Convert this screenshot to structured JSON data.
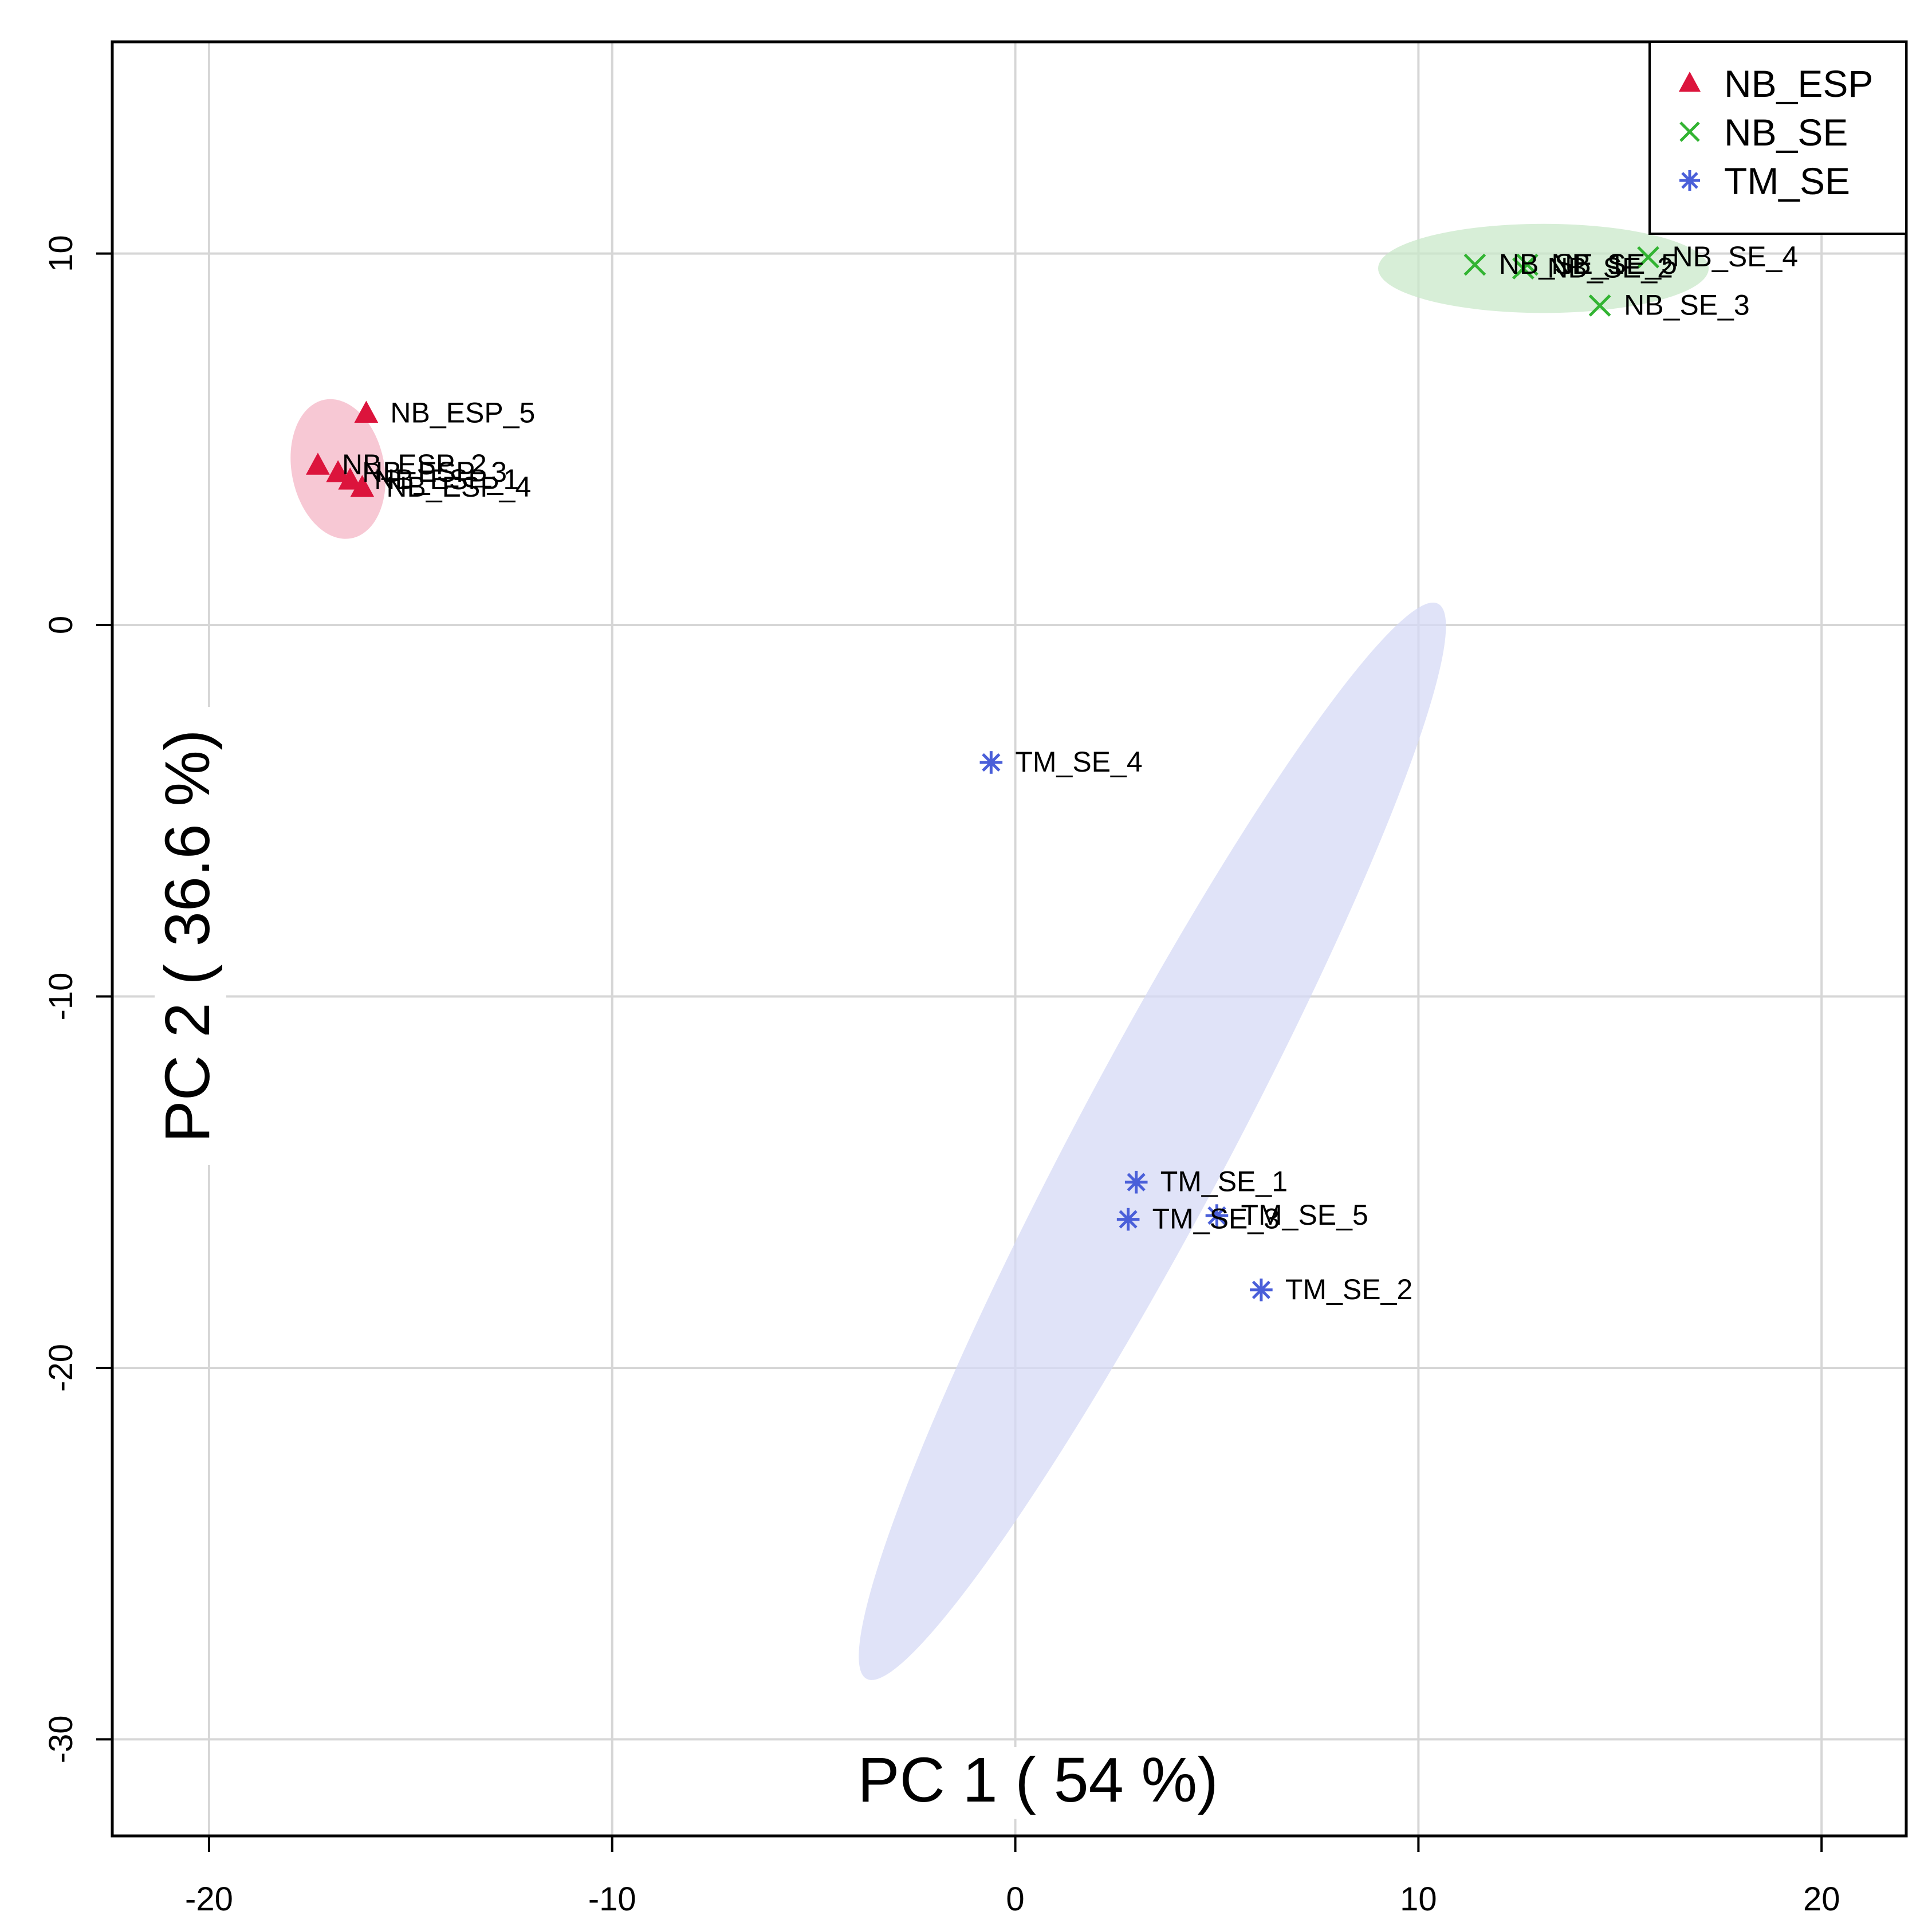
{
  "chart_data": {
    "type": "scatter",
    "xlabel": "PC 1 ( 54 %)",
    "ylabel": "PC 2 ( 36.6 %)",
    "xlim": [
      -22.4,
      22.1
    ],
    "ylim": [
      -32.6,
      15.7
    ],
    "xticks": [
      -20,
      -10,
      0,
      10,
      20
    ],
    "yticks": [
      -30,
      -20,
      -10,
      0,
      10
    ],
    "xtick_labels": [
      "-20",
      "-10",
      "0",
      "10",
      "20"
    ],
    "ytick_labels": [
      "-30",
      "-20",
      "-10",
      "0",
      "10"
    ],
    "grid": true,
    "legend_position": "top-right",
    "series": [
      {
        "name": "NB_ESP",
        "marker": "triangle",
        "color": "#dc143c",
        "ellipse_color": "#f4b6c6",
        "points": [
          {
            "label": "NB_ESP_1",
            "x": -16.5,
            "y": 3.9
          },
          {
            "label": "NB_ESP_2",
            "x": -17.3,
            "y": 4.3
          },
          {
            "label": "NB_ESP_3",
            "x": -16.8,
            "y": 4.1
          },
          {
            "label": "NB_ESP_4",
            "x": -16.2,
            "y": 3.7
          },
          {
            "label": "NB_ESP_5",
            "x": -16.1,
            "y": 5.7
          }
        ],
        "ellipse": {
          "cx": -16.8,
          "cy": 4.2,
          "rx": 1.15,
          "ry": 1.9,
          "angle": 11
        }
      },
      {
        "name": "NB_SE",
        "marker": "x",
        "color": "#32b432",
        "ellipse_color": "#c9e8c9",
        "points": [
          {
            "label": "NB_SE_1",
            "x": 11.4,
            "y": 9.7
          },
          {
            "label": "NB_SE_2",
            "x": 12.6,
            "y": 9.6
          },
          {
            "label": "NB_SE_3",
            "x": 14.5,
            "y": 8.6
          },
          {
            "label": "NB_SE_4",
            "x": 15.7,
            "y": 9.9
          },
          {
            "label": "NB_SE_5",
            "x": 12.7,
            "y": 9.7
          }
        ],
        "ellipse": {
          "cx": 13.1,
          "cy": 9.6,
          "rx": 4.1,
          "ry": 1.2,
          "angle": 0
        }
      },
      {
        "name": "TM_SE",
        "marker": "asterisk",
        "color": "#4a5fd9",
        "ellipse_color": "#d5daf6",
        "points": [
          {
            "label": "TM_SE_1",
            "x": 3.0,
            "y": -15.0
          },
          {
            "label": "TM_SE_2",
            "x": 6.1,
            "y": -17.9
          },
          {
            "label": "TM_SE_3",
            "x": 2.8,
            "y": -16.0
          },
          {
            "label": "TM_SE_4",
            "x": -0.6,
            "y": -3.7
          },
          {
            "label": "TM_SE_5",
            "x": 5.0,
            "y": -15.9
          }
        ],
        "ellipse": {
          "cx": 3.4,
          "cy": -13.9,
          "rx": 15.1,
          "ry": 2.05,
          "angle": 62
        }
      }
    ]
  }
}
